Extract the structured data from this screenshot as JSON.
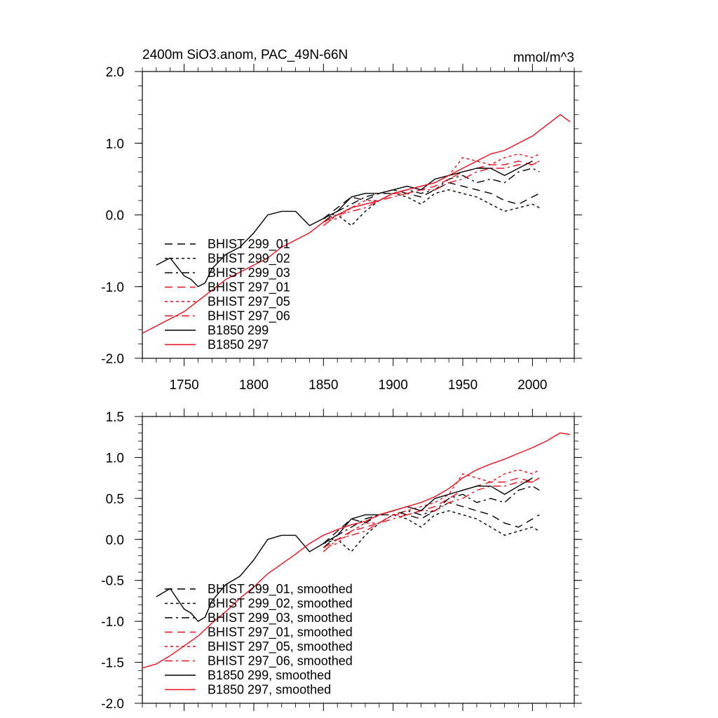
{
  "figure": {
    "title": "2400m SiO3.anom, PAC_49N-66N",
    "units": "mmol/m^3"
  },
  "colors": {
    "black": "#000000",
    "red": "#e8101c"
  },
  "chart_data": [
    {
      "type": "line",
      "panel": "top",
      "title": "2400m SiO3.anom, PAC_49N-66N",
      "units_label": "mmol/m^3",
      "xlim": [
        1720,
        2030
      ],
      "ylim": [
        -2.0,
        2.0
      ],
      "xticks": [
        1750,
        1800,
        1850,
        1900,
        1950,
        2000
      ],
      "xtick_labels": [
        "1750",
        "1800",
        "1850",
        "1900",
        "1950",
        "2000"
      ],
      "yticks": [
        2.0,
        1.0,
        0.0,
        -1.0,
        -2.0
      ],
      "ytick_labels": [
        "2.0",
        "1.0",
        "0.0",
        "-1.0",
        "-2.0"
      ],
      "legend_position": "bottom-left",
      "series": [
        {
          "name": "BHIST 299_01",
          "color": "black",
          "dash": "long-dash",
          "x": [
            1850,
            1860,
            1870,
            1880,
            1890,
            1900,
            1910,
            1920,
            1930,
            1940,
            1950,
            1960,
            1970,
            1980,
            1990,
            2000,
            2005
          ],
          "y": [
            -0.05,
            0.1,
            0.25,
            0.2,
            0.3,
            0.35,
            0.3,
            0.25,
            0.35,
            0.45,
            0.4,
            0.35,
            0.3,
            0.2,
            0.15,
            0.25,
            0.3
          ]
        },
        {
          "name": "BHIST 299_02",
          "color": "black",
          "dash": "short-dash",
          "x": [
            1850,
            1860,
            1870,
            1880,
            1890,
            1900,
            1910,
            1920,
            1930,
            1940,
            1950,
            1960,
            1970,
            1980,
            1990,
            2000,
            2005
          ],
          "y": [
            -0.05,
            0.0,
            -0.15,
            0.05,
            0.2,
            0.3,
            0.25,
            0.15,
            0.3,
            0.35,
            0.3,
            0.25,
            0.15,
            0.05,
            0.1,
            0.15,
            0.1
          ]
        },
        {
          "name": "BHIST 299_03",
          "color": "black",
          "dash": "dash-dot",
          "x": [
            1850,
            1860,
            1870,
            1880,
            1890,
            1900,
            1910,
            1920,
            1930,
            1940,
            1950,
            1960,
            1970,
            1980,
            1990,
            2000,
            2005
          ],
          "y": [
            -0.1,
            0.05,
            0.15,
            0.25,
            0.3,
            0.3,
            0.35,
            0.3,
            0.35,
            0.5,
            0.55,
            0.45,
            0.5,
            0.45,
            0.6,
            0.65,
            0.6
          ]
        },
        {
          "name": "BHIST 297_01",
          "color": "red",
          "dash": "long-dash",
          "x": [
            1850,
            1860,
            1870,
            1880,
            1890,
            1900,
            1910,
            1920,
            1930,
            1940,
            1950,
            1960,
            1970,
            1980,
            1990,
            2000,
            2005
          ],
          "y": [
            -0.1,
            0.0,
            0.1,
            0.15,
            0.2,
            0.3,
            0.3,
            0.35,
            0.4,
            0.5,
            0.6,
            0.65,
            0.7,
            0.7,
            0.75,
            0.7,
            0.75
          ]
        },
        {
          "name": "BHIST 297_05",
          "color": "red",
          "dash": "short-dash",
          "x": [
            1850,
            1860,
            1870,
            1880,
            1890,
            1900,
            1910,
            1920,
            1930,
            1940,
            1950,
            1960,
            1970,
            1980,
            1990,
            2000,
            2005
          ],
          "y": [
            -0.1,
            -0.05,
            0.1,
            0.2,
            0.2,
            0.3,
            0.35,
            0.4,
            0.45,
            0.55,
            0.8,
            0.75,
            0.7,
            0.8,
            0.85,
            0.8,
            0.85
          ]
        },
        {
          "name": "BHIST 297_06",
          "color": "red",
          "dash": "dash-dot",
          "x": [
            1850,
            1860,
            1870,
            1880,
            1890,
            1900,
            1910,
            1920,
            1930,
            1940,
            1950,
            1960,
            1970,
            1980,
            1990,
            2000,
            2005
          ],
          "y": [
            -0.15,
            0.0,
            0.05,
            0.1,
            0.2,
            0.25,
            0.3,
            0.35,
            0.35,
            0.45,
            0.5,
            0.6,
            0.65,
            0.65,
            0.7,
            0.7,
            0.75
          ]
        },
        {
          "name": "B1850 299",
          "color": "black",
          "dash": "solid",
          "x": [
            1730,
            1740,
            1750,
            1755,
            1760,
            1765,
            1770,
            1780,
            1790,
            1800,
            1810,
            1820,
            1830,
            1840,
            1850,
            1860,
            1870,
            1880,
            1890,
            1900,
            1910,
            1920,
            1930,
            1940,
            1950,
            1960,
            1970,
            1980,
            1990,
            2000
          ],
          "y": [
            -0.7,
            -0.6,
            -0.85,
            -0.9,
            -1.0,
            -0.95,
            -0.75,
            -0.55,
            -0.45,
            -0.25,
            0.0,
            0.05,
            0.05,
            -0.15,
            -0.05,
            0.05,
            0.25,
            0.3,
            0.3,
            0.35,
            0.4,
            0.35,
            0.5,
            0.55,
            0.6,
            0.65,
            0.65,
            0.55,
            0.65,
            0.75
          ]
        },
        {
          "name": "B1850 297",
          "color": "red",
          "dash": "solid",
          "x": [
            1720,
            1730,
            1740,
            1750,
            1760,
            1770,
            1780,
            1790,
            1800,
            1810,
            1820,
            1830,
            1840,
            1850,
            1860,
            1870,
            1880,
            1890,
            1900,
            1910,
            1920,
            1930,
            1940,
            1950,
            1960,
            1970,
            1980,
            1990,
            2000,
            2010,
            2020,
            2027
          ],
          "y": [
            -1.65,
            -1.55,
            -1.45,
            -1.35,
            -1.2,
            -1.05,
            -0.9,
            -0.8,
            -0.7,
            -0.6,
            -0.45,
            -0.35,
            -0.25,
            -0.1,
            0.0,
            0.1,
            0.15,
            0.2,
            0.3,
            0.35,
            0.4,
            0.45,
            0.55,
            0.65,
            0.75,
            0.85,
            0.9,
            1.0,
            1.1,
            1.25,
            1.4,
            1.3
          ]
        }
      ]
    },
    {
      "type": "line",
      "panel": "bottom",
      "xlim": [
        1720,
        2030
      ],
      "ylim": [
        -2.0,
        1.5
      ],
      "xticks": [
        1750,
        1800,
        1850,
        1900,
        1950,
        2000
      ],
      "yticks": [
        1.5,
        1.0,
        0.5,
        0.0,
        -0.5,
        -1.0,
        -1.5,
        -2.0
      ],
      "ytick_labels": [
        "1.5",
        "1.0",
        "0.5",
        "0.0",
        "-0.5",
        "-1.0",
        "-1.5",
        "-2.0"
      ],
      "legend_position": "bottom-left",
      "series": [
        {
          "name": "BHIST 299_01, smoothed",
          "color": "black",
          "dash": "long-dash",
          "x": [
            1850,
            1860,
            1870,
            1880,
            1890,
            1900,
            1910,
            1920,
            1930,
            1940,
            1950,
            1960,
            1970,
            1980,
            1990,
            2000,
            2005
          ],
          "y": [
            -0.05,
            0.1,
            0.25,
            0.2,
            0.3,
            0.35,
            0.3,
            0.25,
            0.35,
            0.45,
            0.4,
            0.35,
            0.3,
            0.2,
            0.15,
            0.25,
            0.3
          ]
        },
        {
          "name": "BHIST 299_02, smoothed",
          "color": "black",
          "dash": "short-dash",
          "x": [
            1850,
            1860,
            1870,
            1880,
            1890,
            1900,
            1910,
            1920,
            1930,
            1940,
            1950,
            1960,
            1970,
            1980,
            1990,
            2000,
            2005
          ],
          "y": [
            -0.05,
            0.0,
            -0.15,
            0.05,
            0.2,
            0.3,
            0.25,
            0.15,
            0.3,
            0.35,
            0.3,
            0.25,
            0.15,
            0.05,
            0.1,
            0.15,
            0.1
          ]
        },
        {
          "name": "BHIST 299_03, smoothed",
          "color": "black",
          "dash": "dash-dot",
          "x": [
            1850,
            1860,
            1870,
            1880,
            1890,
            1900,
            1910,
            1920,
            1930,
            1940,
            1950,
            1960,
            1970,
            1980,
            1990,
            2000,
            2005
          ],
          "y": [
            -0.1,
            0.05,
            0.15,
            0.25,
            0.3,
            0.3,
            0.35,
            0.3,
            0.35,
            0.5,
            0.55,
            0.45,
            0.5,
            0.45,
            0.6,
            0.65,
            0.6
          ]
        },
        {
          "name": "BHIST 297_01, smoothed",
          "color": "red",
          "dash": "long-dash",
          "x": [
            1850,
            1860,
            1870,
            1880,
            1890,
            1900,
            1910,
            1920,
            1930,
            1940,
            1950,
            1960,
            1970,
            1980,
            1990,
            2000,
            2005
          ],
          "y": [
            -0.1,
            0.0,
            0.1,
            0.15,
            0.2,
            0.3,
            0.3,
            0.35,
            0.4,
            0.5,
            0.6,
            0.65,
            0.7,
            0.7,
            0.75,
            0.7,
            0.75
          ]
        },
        {
          "name": "BHIST 297_05, smoothed",
          "color": "red",
          "dash": "short-dash",
          "x": [
            1850,
            1860,
            1870,
            1880,
            1890,
            1900,
            1910,
            1920,
            1930,
            1940,
            1950,
            1960,
            1970,
            1980,
            1990,
            2000,
            2005
          ],
          "y": [
            -0.1,
            -0.05,
            0.1,
            0.2,
            0.2,
            0.3,
            0.35,
            0.4,
            0.45,
            0.55,
            0.8,
            0.75,
            0.7,
            0.8,
            0.85,
            0.8,
            0.85
          ]
        },
        {
          "name": "BHIST 297_06, smoothed",
          "color": "red",
          "dash": "dash-dot",
          "x": [
            1850,
            1860,
            1870,
            1880,
            1890,
            1900,
            1910,
            1920,
            1930,
            1940,
            1950,
            1960,
            1970,
            1980,
            1990,
            2000,
            2005
          ],
          "y": [
            -0.15,
            0.0,
            0.05,
            0.1,
            0.2,
            0.25,
            0.3,
            0.35,
            0.35,
            0.45,
            0.5,
            0.6,
            0.65,
            0.65,
            0.7,
            0.7,
            0.75
          ]
        },
        {
          "name": "B1850 299, smoothed",
          "color": "black",
          "dash": "solid",
          "x": [
            1730,
            1740,
            1750,
            1755,
            1760,
            1765,
            1770,
            1780,
            1790,
            1800,
            1810,
            1820,
            1830,
            1840,
            1850,
            1860,
            1870,
            1880,
            1890,
            1900,
            1910,
            1920,
            1930,
            1940,
            1950,
            1960,
            1970,
            1980,
            1990,
            2000
          ],
          "y": [
            -0.7,
            -0.6,
            -0.85,
            -0.9,
            -1.0,
            -0.95,
            -0.75,
            -0.55,
            -0.45,
            -0.25,
            0.0,
            0.05,
            0.05,
            -0.15,
            -0.05,
            0.05,
            0.25,
            0.3,
            0.3,
            0.35,
            0.4,
            0.35,
            0.5,
            0.55,
            0.6,
            0.65,
            0.65,
            0.55,
            0.65,
            0.75
          ]
        },
        {
          "name": "B1850 297, smoothed",
          "color": "red",
          "dash": "solid",
          "x": [
            1720,
            1730,
            1740,
            1750,
            1760,
            1770,
            1780,
            1790,
            1800,
            1810,
            1820,
            1830,
            1840,
            1850,
            1860,
            1870,
            1880,
            1890,
            1900,
            1910,
            1920,
            1930,
            1940,
            1950,
            1960,
            1970,
            1980,
            1990,
            2000,
            2010,
            2020,
            2027
          ],
          "y": [
            -1.57,
            -1.52,
            -1.42,
            -1.3,
            -1.18,
            -1.02,
            -0.88,
            -0.72,
            -0.58,
            -0.42,
            -0.3,
            -0.18,
            -0.05,
            0.05,
            0.12,
            0.18,
            0.22,
            0.3,
            0.35,
            0.4,
            0.45,
            0.52,
            0.62,
            0.75,
            0.85,
            0.92,
            0.98,
            1.05,
            1.12,
            1.2,
            1.3,
            1.28
          ]
        }
      ]
    }
  ]
}
